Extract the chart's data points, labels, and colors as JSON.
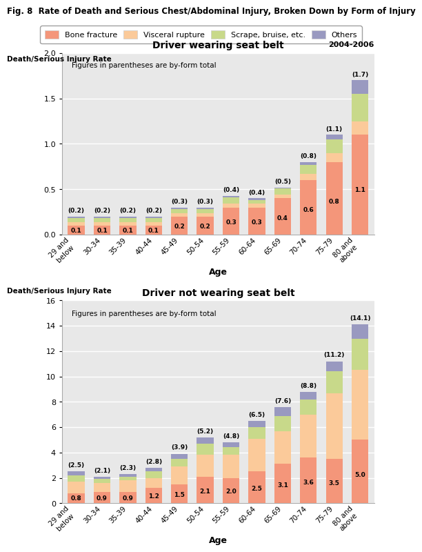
{
  "title": "Fig. 8  Rate of Death and Serious Chest/Abdominal Injury, Broken Down by Form of Injury",
  "legend_labels": [
    "Bone fracture",
    "Visceral rupture",
    "Scrape, bruise, etc.",
    "Others"
  ],
  "colors": [
    "#F4967A",
    "#FBCA9A",
    "#C8D98A",
    "#9999C0"
  ],
  "age_labels": [
    "29 and\nbelow",
    "30-34",
    "35-39",
    "40-44",
    "45-49",
    "50-54",
    "55-59",
    "60-64",
    "65-69",
    "70-74",
    "75-79",
    "80 and\nabove"
  ],
  "year_label": "2004-2006",
  "chart1": {
    "title": "Driver wearing seat belt",
    "ylabel": "Death/Serious Injury Rate",
    "note": "Figures in parentheses are by-form total",
    "ylim": [
      0,
      2.0
    ],
    "yticks": [
      0.0,
      0.5,
      1.0,
      1.5,
      2.0
    ],
    "totals": [
      "(0.2)",
      "(0.2)",
      "(0.2)",
      "(0.2)",
      "(0.3)",
      "(0.3)",
      "(0.4)",
      "(0.4)",
      "(0.5)",
      "(0.8)",
      "(1.1)",
      "(1.7)"
    ],
    "bone_labels": [
      "0.1",
      "0.1",
      "0.1",
      "0.1",
      "0.2",
      "0.2",
      "0.3",
      "0.3",
      "0.4",
      "0.6",
      "0.8",
      "1.1"
    ],
    "bone": [
      0.1,
      0.1,
      0.1,
      0.1,
      0.2,
      0.2,
      0.3,
      0.3,
      0.4,
      0.6,
      0.8,
      1.1
    ],
    "visceral": [
      0.04,
      0.04,
      0.04,
      0.04,
      0.04,
      0.04,
      0.04,
      0.04,
      0.04,
      0.07,
      0.1,
      0.15
    ],
    "scrape": [
      0.04,
      0.04,
      0.04,
      0.04,
      0.04,
      0.04,
      0.07,
      0.04,
      0.07,
      0.1,
      0.15,
      0.3
    ],
    "others": [
      0.02,
      0.02,
      0.02,
      0.02,
      0.02,
      0.02,
      0.02,
      0.02,
      0.01,
      0.03,
      0.05,
      0.15
    ]
  },
  "chart2": {
    "title": "Driver not wearing seat belt",
    "ylabel": "Death/Serious Injury Rate",
    "note": "Figures in parentheses are by-form total",
    "ylim": [
      0,
      16
    ],
    "yticks": [
      0,
      2,
      4,
      6,
      8,
      10,
      12,
      14,
      16
    ],
    "totals": [
      "(2.5)",
      "(2.1)",
      "(2.3)",
      "(2.8)",
      "(3.9)",
      "(5.2)",
      "(4.8)",
      "(6.5)",
      "(7.6)",
      "(8.8)",
      "(11.2)",
      "(14.1)"
    ],
    "bone_labels": [
      "0.8",
      "0.9",
      "0.9",
      "1.2",
      "1.5",
      "2.1",
      "2.0",
      "2.5",
      "3.1",
      "3.6",
      "3.5",
      "5.0"
    ],
    "bone": [
      0.8,
      0.9,
      0.9,
      1.2,
      1.5,
      2.1,
      2.0,
      2.5,
      3.1,
      3.6,
      3.5,
      5.0
    ],
    "visceral": [
      0.9,
      0.7,
      0.9,
      0.8,
      1.4,
      1.7,
      1.8,
      2.6,
      2.6,
      3.4,
      5.2,
      5.5
    ],
    "scrape": [
      0.5,
      0.3,
      0.3,
      0.5,
      0.6,
      0.9,
      0.6,
      0.9,
      1.2,
      1.2,
      1.7,
      2.5
    ],
    "others": [
      0.3,
      0.2,
      0.2,
      0.3,
      0.4,
      0.5,
      0.4,
      0.5,
      0.7,
      0.6,
      0.8,
      1.1
    ]
  }
}
